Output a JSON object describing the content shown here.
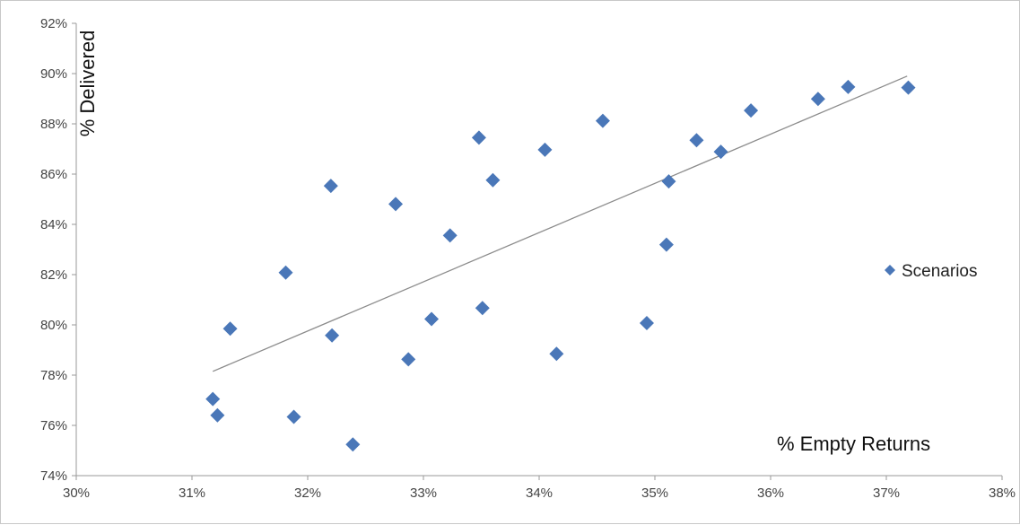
{
  "chart_data": {
    "type": "scatter",
    "xlabel": "% Empty Returns",
    "ylabel": "% Delivered",
    "xlim": [
      0.3,
      0.38
    ],
    "ylim": [
      0.74,
      0.92
    ],
    "x_ticks": [
      "30%",
      "31%",
      "32%",
      "33%",
      "34%",
      "35%",
      "36%",
      "37%",
      "38%"
    ],
    "y_ticks": [
      "74%",
      "76%",
      "78%",
      "80%",
      "82%",
      "84%",
      "86%",
      "88%",
      "90%",
      "92%"
    ],
    "legend_position": "right",
    "grid": false,
    "series": [
      {
        "name": "Scenarios",
        "color": "#4a77b8",
        "marker": "diamond",
        "points": [
          [
            0.3118,
            0.7705
          ],
          [
            0.3122,
            0.764
          ],
          [
            0.3133,
            0.7985
          ],
          [
            0.3181,
            0.8208
          ],
          [
            0.3188,
            0.7634
          ],
          [
            0.322,
            0.8553
          ],
          [
            0.3221,
            0.7958
          ],
          [
            0.3239,
            0.7524
          ],
          [
            0.3276,
            0.8481
          ],
          [
            0.3287,
            0.7863
          ],
          [
            0.3307,
            0.8023
          ],
          [
            0.3323,
            0.8356
          ],
          [
            0.3348,
            0.8745
          ],
          [
            0.3351,
            0.8067
          ],
          [
            0.336,
            0.8576
          ],
          [
            0.3405,
            0.8697
          ],
          [
            0.3415,
            0.7885
          ],
          [
            0.3455,
            0.8812
          ],
          [
            0.3493,
            0.8007
          ],
          [
            0.351,
            0.8319
          ],
          [
            0.3512,
            0.8571
          ],
          [
            0.3536,
            0.8735
          ],
          [
            0.3557,
            0.8689
          ],
          [
            0.3583,
            0.8853
          ],
          [
            0.3641,
            0.8899
          ],
          [
            0.3667,
            0.8947
          ],
          [
            0.3719,
            0.8944
          ]
        ]
      }
    ],
    "trendline": {
      "type": "linear",
      "color": "#8c8c8c",
      "x_start": 0.3118,
      "x_end": 0.3718,
      "y_start": 0.7815,
      "y_end": 0.899
    }
  }
}
